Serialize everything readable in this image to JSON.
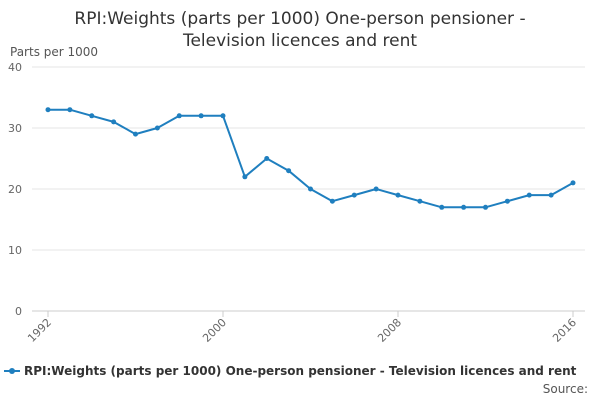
{
  "colors": {
    "series": "#1f7fbf",
    "grid": "#e6e6e6",
    "text": "#333333",
    "axis_text": "#666666"
  },
  "chart_data": {
    "type": "line",
    "title": "RPI:Weights (parts per 1000) One-person pensioner -\nTelevision licences and rent",
    "ylabel": "Parts per 1000",
    "xlabel": "",
    "ylim": [
      0,
      40
    ],
    "xlim": [
      1992,
      2016
    ],
    "yticks": [
      0,
      10,
      20,
      30,
      40
    ],
    "xticks": [
      1992,
      2000,
      2008,
      2016
    ],
    "grid": true,
    "series": [
      {
        "name": "RPI:Weights (parts per 1000) One-person pensioner - Television licences and rent",
        "x": [
          1992,
          1993,
          1994,
          1995,
          1996,
          1997,
          1998,
          1999,
          2000,
          2001,
          2002,
          2003,
          2004,
          2005,
          2006,
          2007,
          2008,
          2009,
          2010,
          2011,
          2012,
          2013,
          2014,
          2015,
          2016
        ],
        "values": [
          33,
          33,
          32,
          31,
          29,
          30,
          32,
          32,
          32,
          22,
          25,
          23,
          20,
          18,
          19,
          20,
          19,
          18,
          17,
          17,
          17,
          18,
          19,
          19,
          21
        ]
      }
    ],
    "source_label": "Source:"
  }
}
